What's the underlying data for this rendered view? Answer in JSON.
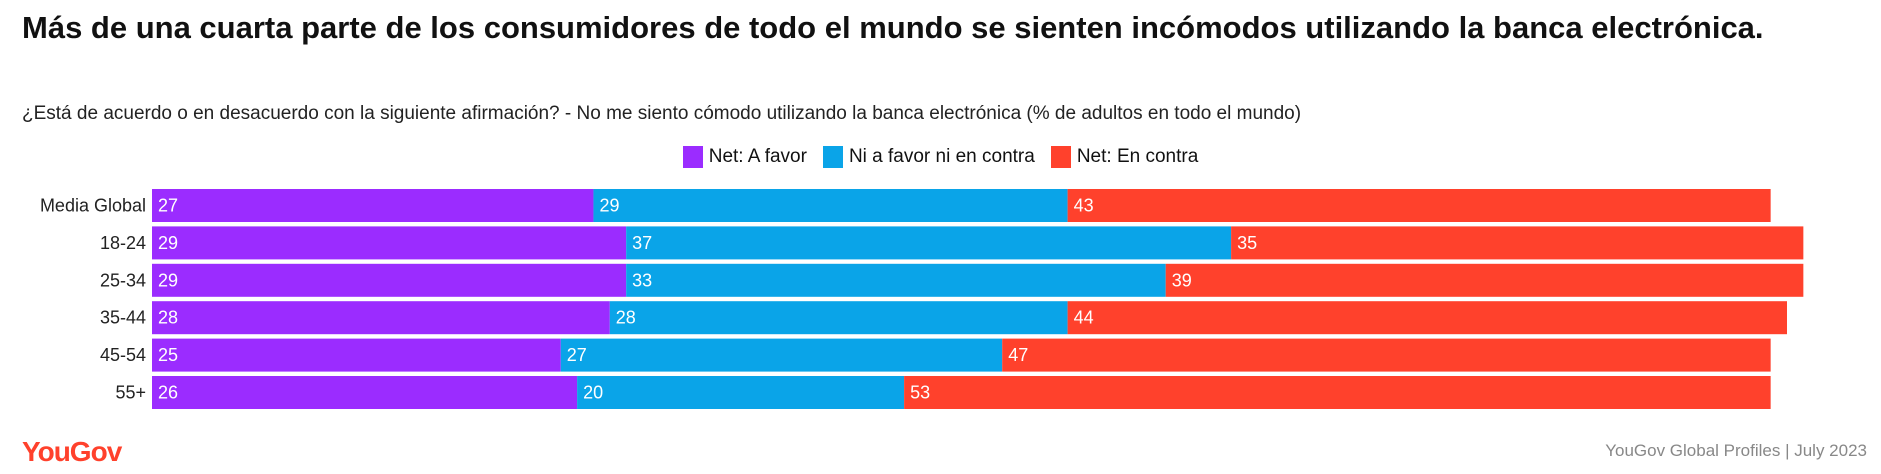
{
  "chart_data": {
    "type": "bar",
    "orientation": "horizontal",
    "stacked": true,
    "title": "Más de una cuarta parte de los consumidores de todo el mundo se sienten incómodos utilizando la banca electrónica.",
    "subtitle": "¿Está de acuerdo o en desacuerdo con la siguiente afirmación? - No me siento cómodo utilizando la banca electrónica (% de adultos en todo el mundo)",
    "categories": [
      "Media Global",
      "18-24",
      "25-34",
      "35-44",
      "45-54",
      "55+"
    ],
    "series": [
      {
        "name": "Net: A favor",
        "color": "#9b2cff",
        "values": [
          27,
          29,
          29,
          28,
          25,
          26
        ]
      },
      {
        "name": "Ni a favor ni en contra",
        "color": "#0aa4e8",
        "values": [
          29,
          37,
          33,
          28,
          27,
          20
        ]
      },
      {
        "name": "Net: En contra",
        "color": "#ff412c",
        "values": [
          43,
          35,
          39,
          44,
          47,
          53
        ]
      }
    ],
    "legend": "top-center",
    "grid": false,
    "xlabel": "",
    "ylabel": ""
  },
  "footer": {
    "logo": "YouGov",
    "source": "YouGov Global Profiles | July 2023"
  }
}
